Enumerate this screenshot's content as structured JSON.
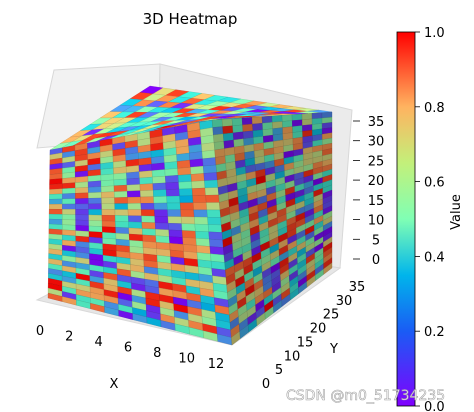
{
  "chart_data": {
    "type": "heatmap",
    "subtype": "3d-voxel",
    "title": "3D Heatmap",
    "xlabel": "X",
    "ylabel": "Y",
    "zlabel": "",
    "x_ticks": [
      "0",
      "2",
      "4",
      "6",
      "8",
      "10",
      "12"
    ],
    "y_ticks": [
      "0",
      "5",
      "10",
      "15",
      "20",
      "25",
      "30",
      "35"
    ],
    "z_ticks": [
      "0",
      "5",
      "10",
      "15",
      "20",
      "25",
      "30",
      "35"
    ],
    "xlim": [
      0,
      12
    ],
    "ylim": [
      0,
      35
    ],
    "zlim": [
      0,
      35
    ],
    "colormap": "rainbow",
    "colorbar": {
      "label": "Value",
      "ticks": [
        "0.0",
        "0.2",
        "0.4",
        "0.6",
        "0.8",
        "1.0"
      ],
      "range": [
        0.0,
        1.0
      ]
    },
    "values_note": "",
    "grid": true
  },
  "watermark": "CSDN @m0_51734235"
}
